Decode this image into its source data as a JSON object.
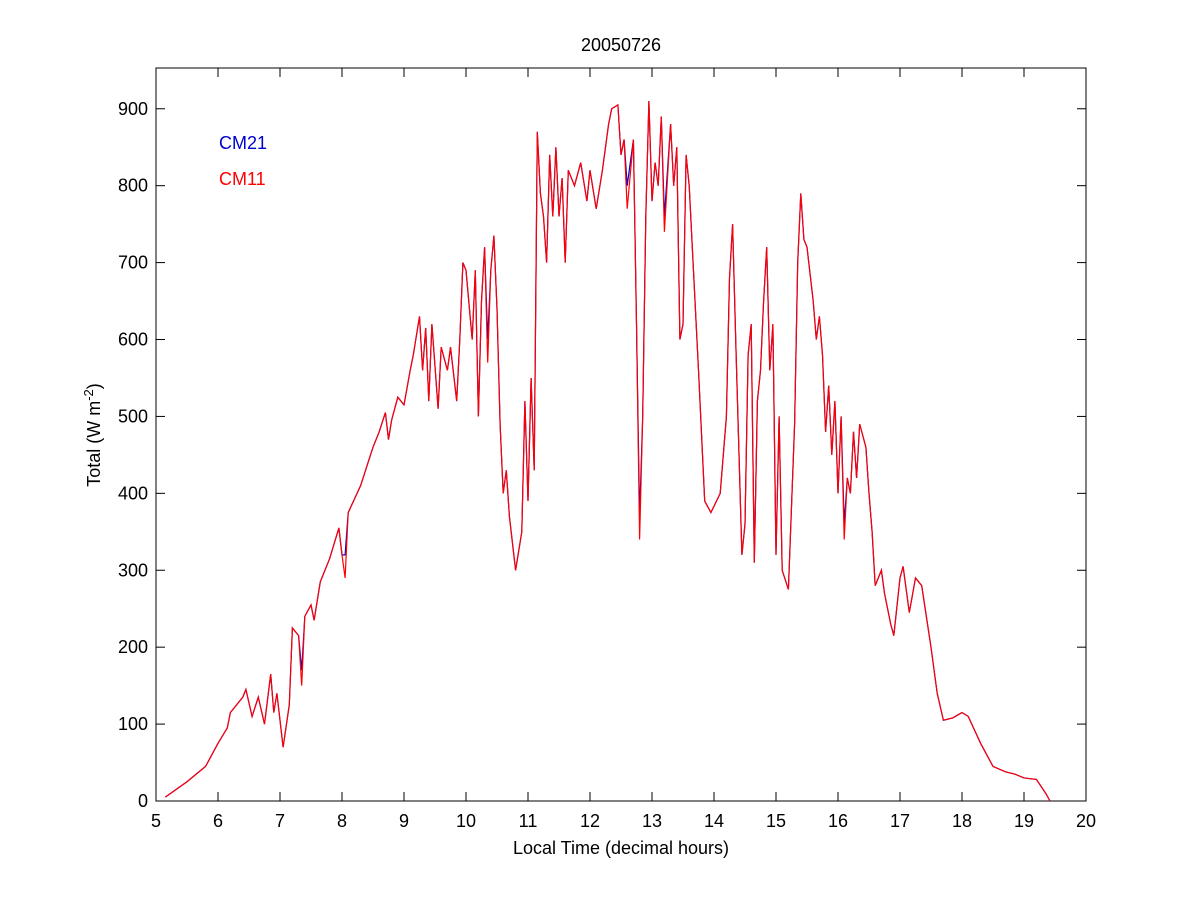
{
  "chart_data": {
    "type": "line",
    "title": "20050726",
    "x_label": "Local Time (decimal hours)",
    "y_label": {
      "text": "Total (W m",
      "superscript": "-2",
      "suffix": ")"
    },
    "legend": "upper left",
    "grid": false,
    "xlim": [
      5,
      20
    ],
    "ylim": [
      0,
      953
    ],
    "xticks": [
      5,
      6,
      7,
      8,
      9,
      10,
      11,
      12,
      13,
      14,
      15,
      16,
      17,
      18,
      19,
      20
    ],
    "yticks": [
      0,
      100,
      200,
      300,
      400,
      500,
      600,
      700,
      800,
      900
    ],
    "x": [
      5.15,
      5.5,
      5.8,
      6.0,
      6.15,
      6.2,
      6.4,
      6.45,
      6.55,
      6.65,
      6.75,
      6.85,
      6.9,
      6.95,
      7.05,
      7.15,
      7.2,
      7.3,
      7.35,
      7.4,
      7.5,
      7.55,
      7.65,
      7.8,
      7.95,
      8.0,
      8.05,
      8.1,
      8.3,
      8.5,
      8.6,
      8.7,
      8.75,
      8.8,
      8.9,
      9.0,
      9.1,
      9.15,
      9.25,
      9.3,
      9.35,
      9.4,
      9.45,
      9.55,
      9.6,
      9.7,
      9.75,
      9.85,
      9.9,
      9.95,
      10.0,
      10.1,
      10.15,
      10.2,
      10.25,
      10.3,
      10.35,
      10.4,
      10.45,
      10.5,
      10.55,
      10.6,
      10.65,
      10.7,
      10.8,
      10.9,
      10.95,
      11.0,
      11.05,
      11.1,
      11.15,
      11.2,
      11.25,
      11.3,
      11.35,
      11.4,
      11.45,
      11.5,
      11.55,
      11.6,
      11.65,
      11.75,
      11.85,
      11.95,
      12.0,
      12.1,
      12.2,
      12.3,
      12.35,
      12.45,
      12.5,
      12.55,
      12.6,
      12.7,
      12.75,
      12.8,
      12.85,
      12.9,
      12.95,
      13.0,
      13.05,
      13.1,
      13.15,
      13.2,
      13.3,
      13.35,
      13.4,
      13.45,
      13.5,
      13.55,
      13.6,
      13.75,
      13.85,
      13.95,
      14.1,
      14.2,
      14.25,
      14.3,
      14.35,
      14.45,
      14.5,
      14.55,
      14.6,
      14.65,
      14.7,
      14.75,
      14.8,
      14.85,
      14.9,
      14.95,
      15.0,
      15.05,
      15.1,
      15.2,
      15.3,
      15.35,
      15.4,
      15.45,
      15.5,
      15.6,
      15.65,
      15.7,
      15.75,
      15.8,
      15.85,
      15.9,
      15.95,
      16.0,
      16.05,
      16.1,
      16.15,
      16.2,
      16.25,
      16.3,
      16.35,
      16.45,
      16.5,
      16.55,
      16.6,
      16.7,
      16.75,
      16.85,
      16.9,
      17.0,
      17.05,
      17.15,
      17.25,
      17.35,
      17.5,
      17.6,
      17.7,
      17.85,
      18.0,
      18.1,
      18.3,
      18.5,
      18.7,
      18.85,
      19.0,
      19.2,
      19.35,
      19.42
    ],
    "series": [
      {
        "name": "CM21",
        "color": "#0000cc",
        "values": [
          5,
          25,
          45,
          75,
          95,
          115,
          135,
          145,
          110,
          135,
          100,
          165,
          115,
          140,
          70,
          125,
          225,
          215,
          170,
          240,
          255,
          235,
          285,
          315,
          355,
          320,
          320,
          375,
          410,
          460,
          480,
          505,
          470,
          495,
          525,
          515,
          560,
          580,
          630,
          560,
          615,
          520,
          620,
          510,
          590,
          560,
          590,
          520,
          600,
          700,
          690,
          600,
          690,
          500,
          650,
          720,
          600,
          690,
          735,
          640,
          490,
          400,
          430,
          370,
          300,
          350,
          520,
          390,
          550,
          430,
          870,
          790,
          760,
          700,
          840,
          760,
          850,
          760,
          810,
          700,
          820,
          800,
          830,
          780,
          820,
          770,
          820,
          880,
          900,
          905,
          840,
          860,
          800,
          860,
          620,
          370,
          500,
          760,
          910,
          780,
          830,
          800,
          890,
          760,
          880,
          800,
          850,
          600,
          620,
          840,
          800,
          560,
          390,
          375,
          400,
          500,
          680,
          750,
          600,
          320,
          360,
          580,
          620,
          310,
          520,
          560,
          650,
          720,
          560,
          620,
          320,
          500,
          300,
          275,
          490,
          700,
          790,
          730,
          720,
          650,
          600,
          630,
          580,
          480,
          540,
          450,
          520,
          400,
          500,
          360,
          420,
          400,
          480,
          420,
          490,
          460,
          400,
          350,
          280,
          300,
          270,
          230,
          215,
          290,
          305,
          245,
          290,
          280,
          200,
          140,
          105,
          108,
          115,
          110,
          75,
          45,
          38,
          35,
          30,
          28,
          10,
          0
        ]
      },
      {
        "name": "CM11",
        "color": "#ff0000",
        "values": [
          5,
          25,
          45,
          75,
          95,
          115,
          135,
          145,
          110,
          135,
          100,
          165,
          115,
          140,
          70,
          125,
          225,
          215,
          150,
          240,
          255,
          235,
          285,
          315,
          355,
          320,
          290,
          375,
          410,
          460,
          480,
          505,
          470,
          495,
          525,
          515,
          560,
          580,
          630,
          560,
          615,
          520,
          620,
          510,
          590,
          560,
          590,
          520,
          600,
          700,
          690,
          600,
          690,
          500,
          650,
          720,
          570,
          690,
          735,
          640,
          490,
          400,
          430,
          370,
          300,
          350,
          520,
          390,
          550,
          430,
          870,
          790,
          760,
          700,
          840,
          760,
          850,
          760,
          810,
          700,
          820,
          800,
          830,
          780,
          820,
          770,
          820,
          880,
          900,
          905,
          840,
          860,
          770,
          860,
          620,
          340,
          500,
          760,
          910,
          780,
          830,
          800,
          890,
          740,
          880,
          800,
          850,
          600,
          620,
          840,
          800,
          560,
          390,
          375,
          400,
          500,
          680,
          750,
          600,
          320,
          360,
          580,
          620,
          310,
          520,
          560,
          650,
          720,
          560,
          620,
          320,
          500,
          300,
          275,
          490,
          700,
          790,
          730,
          720,
          650,
          600,
          630,
          580,
          480,
          540,
          450,
          520,
          400,
          500,
          340,
          420,
          400,
          480,
          420,
          490,
          460,
          400,
          350,
          280,
          300,
          270,
          230,
          215,
          290,
          305,
          245,
          290,
          280,
          200,
          140,
          105,
          108,
          115,
          110,
          75,
          45,
          38,
          35,
          30,
          28,
          10,
          0
        ]
      }
    ]
  }
}
